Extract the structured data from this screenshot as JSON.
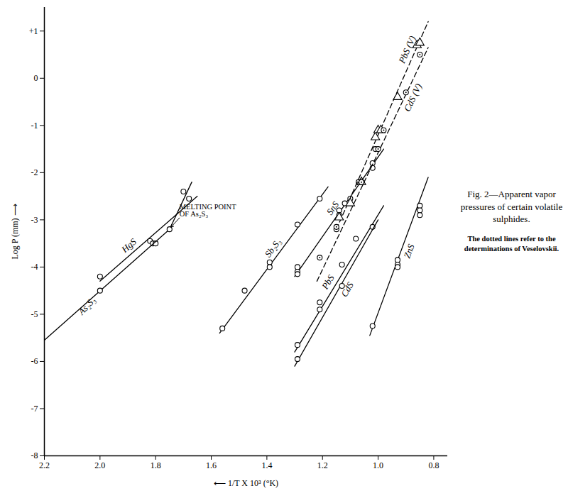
{
  "chart_data": {
    "type": "scatter",
    "title": "Fig. 2—Apparent vapor pressures of certain volatile sulphides.",
    "caption": "The dotted lines refer to the determinations of Veselovskii.",
    "x_label": "⟵ 1/T X 10³ (°K)",
    "y_label": "Log P (mm) ⟶",
    "xlim": [
      2.2,
      0.75
    ],
    "ylim": [
      -8,
      1.5
    ],
    "xticks": [
      2.2,
      {
        "value": 2.0,
        "label": "2.0"
      },
      1.8,
      1.6,
      1.4,
      1.2,
      {
        "value": 1.0,
        "label": "1.0"
      },
      0.8
    ],
    "yticks": [
      {
        "value": 1,
        "label": "+1"
      },
      0,
      -1,
      -2,
      -3,
      -4,
      -5,
      -6,
      -7,
      -8
    ],
    "grid": false,
    "color": "#000000",
    "series": [
      {
        "name": "HgS",
        "marker": "circle",
        "line_style": "solid",
        "x": [
          2.0,
          1.82,
          1.81,
          1.8
        ],
        "values": [
          -4.2,
          -3.45,
          -3.5,
          -3.5
        ],
        "line_x": [
          2.0,
          1.65
        ],
        "line_values": [
          -4.3,
          -2.5
        ]
      },
      {
        "name": "As₂S₃",
        "marker": "circle",
        "line_style": "solid",
        "x": [
          2.0,
          1.75,
          1.7,
          1.68
        ],
        "values": [
          -4.5,
          -3.2,
          -2.4,
          -2.55
        ],
        "line_x": [
          2.2,
          1.75,
          1.67
        ],
        "line_values": [
          -5.55,
          -3.2,
          -2.2
        ]
      },
      {
        "name": "Sb₂S₃",
        "marker": "circle",
        "line_style": "solid",
        "x": [
          1.56,
          1.48,
          1.39,
          1.39,
          1.29,
          1.21
        ],
        "values": [
          -5.3,
          -4.5,
          -3.9,
          -4.0,
          -3.1,
          -2.55
        ],
        "line_x": [
          1.57,
          1.18
        ],
        "line_values": [
          -5.4,
          -2.3
        ]
      },
      {
        "name": "SnS",
        "marker": "circle",
        "line_style": "solid",
        "x": [
          1.29,
          1.29,
          1.29,
          1.15,
          1.14,
          1.14,
          1.12,
          1.1,
          1.07,
          1.02,
          1.02,
          1.01
        ],
        "values": [
          -4.0,
          -4.1,
          -4.15,
          -3.2,
          -2.8,
          -2.9,
          -2.65,
          -2.55,
          -2.2,
          -1.8,
          -1.9,
          -1.5
        ],
        "line_x": [
          1.3,
          0.98
        ],
        "line_values": [
          -4.2,
          -1.5
        ]
      },
      {
        "name": "PbS",
        "marker": "circle",
        "line_style": "solid",
        "x": [
          1.29,
          1.21,
          1.21,
          1.13,
          1.08,
          1.02
        ],
        "values": [
          -5.65,
          -4.75,
          -4.9,
          -3.95,
          -3.4,
          -3.15
        ],
        "line_x": [
          1.3,
          0.98
        ],
        "line_values": [
          -5.8,
          -2.7
        ]
      },
      {
        "name": "CdS",
        "marker": "circle",
        "line_style": "solid",
        "x": [
          1.29,
          1.13
        ],
        "values": [
          -5.95,
          -4.4
        ],
        "line_x": [
          1.3,
          1.0
        ],
        "line_values": [
          -6.1,
          -3.0
        ]
      },
      {
        "name": "ZnS",
        "marker": "circle",
        "line_style": "solid",
        "x": [
          1.02,
          0.93,
          0.93,
          0.93,
          0.85,
          0.85,
          0.85
        ],
        "values": [
          -5.25,
          -3.85,
          -3.95,
          -4.0,
          -2.7,
          -2.8,
          -2.9
        ],
        "line_x": [
          1.03,
          0.82
        ],
        "line_values": [
          -5.45,
          -2.1
        ]
      },
      {
        "name": "PbS (V)",
        "marker": "triangle",
        "line_style": "dashed",
        "x": [
          1.14,
          1.1,
          1.06,
          1.01,
          1.0,
          0.99,
          0.93,
          0.86,
          0.85
        ],
        "values": [
          -2.95,
          -2.65,
          -2.2,
          -1.25,
          -1.1,
          -1.1,
          -0.4,
          0.7,
          0.75
        ],
        "line_x": [
          1.15,
          0.82
        ],
        "line_values": [
          -3.2,
          1.2
        ]
      },
      {
        "name": "CdS (V)",
        "marker": "circle",
        "line_style": "dashed",
        "x": [
          1.21,
          1.15,
          1.06,
          1.0,
          0.98,
          0.9,
          0.85
        ],
        "values": [
          -3.8,
          -3.15,
          -2.2,
          -1.5,
          -1.1,
          -0.3,
          0.5
        ],
        "line_x": [
          1.22,
          0.82
        ],
        "line_values": [
          -4.3,
          0.65
        ]
      }
    ],
    "annotations": [
      {
        "text": "MELTING POINT\nOF As₂S₃",
        "x": 1.75,
        "y": -3.2
      }
    ]
  }
}
